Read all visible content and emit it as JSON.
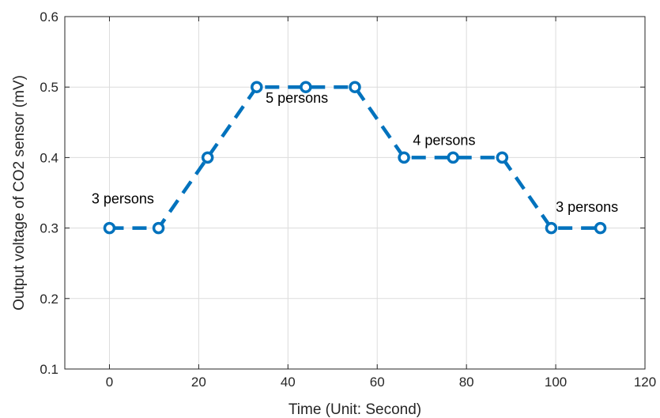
{
  "chart_data": {
    "type": "line",
    "title": "",
    "xlabel": "Time (Unit: Second)",
    "ylabel": "Output voltage of CO2 sensor (mV)",
    "xlim": [
      -10,
      120
    ],
    "ylim": [
      0.1,
      0.6
    ],
    "xticks": [
      0,
      20,
      40,
      60,
      80,
      100,
      120
    ],
    "xtick_labels": [
      "0",
      "20",
      "40",
      "60",
      "80",
      "100",
      "120"
    ],
    "yticks": [
      0.1,
      0.2,
      0.3,
      0.4,
      0.5,
      0.6
    ],
    "ytick_labels": [
      "0.1",
      "0.2",
      "0.3",
      "0.4",
      "0.5",
      "0.6"
    ],
    "grid": true,
    "series": [
      {
        "x": [
          0,
          11,
          22,
          33,
          44,
          55,
          66,
          77,
          88,
          99,
          110
        ],
        "y": [
          0.3,
          0.3,
          0.4,
          0.5,
          0.5,
          0.5,
          0.4,
          0.4,
          0.4,
          0.3,
          0.3
        ],
        "color": "#0072BD",
        "line_style": "dashed",
        "marker": "circle"
      }
    ],
    "annotations": [
      {
        "text": "3 persons",
        "x": -4,
        "y": 0.335
      },
      {
        "text": "5 persons",
        "x": 35,
        "y": 0.478
      },
      {
        "text": "4 persons",
        "x": 68,
        "y": 0.418
      },
      {
        "text": "3 persons",
        "x": 100,
        "y": 0.323
      }
    ]
  }
}
